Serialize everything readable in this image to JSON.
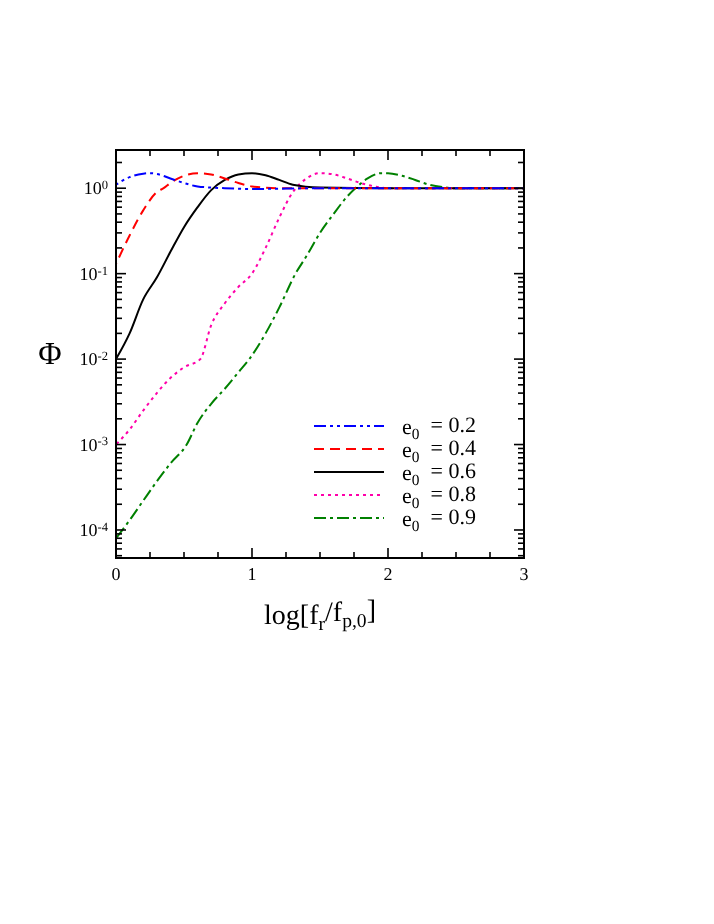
{
  "chart_data": {
    "type": "line",
    "xlabel": "log[f$_{r}$/f$_{p,0}$]",
    "ylabel": "Φ",
    "log": "y",
    "xlim": [
      0,
      3
    ],
    "ylim": [
      4.7e-05,
      2.8
    ],
    "xticks": [
      0,
      {
        "value": 0.25,
        "label": null
      },
      {
        "value": 0.5,
        "label": null
      },
      {
        "value": 0.75,
        "label": null
      },
      1,
      {
        "value": 1.25,
        "label": null
      },
      {
        "value": 1.5,
        "label": null
      },
      {
        "value": 1.75,
        "label": null
      },
      2,
      {
        "value": 2.25,
        "label": null
      },
      {
        "value": 2.5,
        "label": null
      },
      {
        "value": 2.75,
        "label": null
      },
      3
    ],
    "yticks": [
      {
        "value": 0.0001,
        "label": "10$^{-4}$"
      },
      {
        "value": 0.001,
        "label": "10$^{-3}$"
      },
      {
        "value": 0.01,
        "label": "10$^{-2}$"
      },
      {
        "value": 0.1,
        "label": "10$^{-1}$"
      },
      {
        "value": 1,
        "label": "10$^{0}$"
      },
      {
        "value": 5e-05,
        "label": null
      },
      {
        "value": 6e-05,
        "label": null
      },
      {
        "value": 7e-05,
        "label": null
      },
      {
        "value": 8e-05,
        "label": null
      },
      {
        "value": 9e-05,
        "label": null
      },
      {
        "value": 0.0002,
        "label": null
      },
      {
        "value": 0.0003,
        "label": null
      },
      {
        "value": 0.0004,
        "label": null
      },
      {
        "value": 0.0005,
        "label": null
      },
      {
        "value": 0.0006,
        "label": null
      },
      {
        "value": 0.0007,
        "label": null
      },
      {
        "value": 0.0008,
        "label": null
      },
      {
        "value": 0.0009,
        "label": null
      },
      {
        "value": 0.002,
        "label": null
      },
      {
        "value": 0.003,
        "label": null
      },
      {
        "value": 0.004,
        "label": null
      },
      {
        "value": 0.005,
        "label": null
      },
      {
        "value": 0.006,
        "label": null
      },
      {
        "value": 0.007,
        "label": null
      },
      {
        "value": 0.008,
        "label": null
      },
      {
        "value": 0.009,
        "label": null
      },
      {
        "value": 0.02,
        "label": null
      },
      {
        "value": 0.03,
        "label": null
      },
      {
        "value": 0.04,
        "label": null
      },
      {
        "value": 0.05,
        "label": null
      },
      {
        "value": 0.06,
        "label": null
      },
      {
        "value": 0.07,
        "label": null
      },
      {
        "value": 0.08,
        "label": null
      },
      {
        "value": 0.09,
        "label": null
      },
      {
        "value": 0.2,
        "label": null
      },
      {
        "value": 0.3,
        "label": null
      },
      {
        "value": 0.4,
        "label": null
      },
      {
        "value": 0.5,
        "label": null
      },
      {
        "value": 0.6,
        "label": null
      },
      {
        "value": 0.7,
        "label": null
      },
      {
        "value": 0.8,
        "label": null
      },
      {
        "value": 0.9,
        "label": null
      },
      {
        "value": 2,
        "label": null
      }
    ],
    "legend": "bottom right",
    "series": [
      {
        "name": "e$_{0}$  = 0.2",
        "color": "#0000ff",
        "line_style": "dashdotdot",
        "x": [
          0,
          0.1,
          0.2,
          0.25,
          0.3,
          0.4,
          0.5,
          0.6,
          0.8,
          1,
          1.5,
          2,
          2.5,
          3
        ],
        "values": [
          1.1,
          1.35,
          1.48,
          1.5,
          1.47,
          1.3,
          1.15,
          1.05,
          1.0,
          0.98,
          1,
          1,
          1,
          1
        ]
      },
      {
        "name": "e$_{0}$  = 0.4",
        "color": "#ff0000",
        "line_style": "dashed",
        "x": [
          0,
          0.1,
          0.2,
          0.3,
          0.35,
          0.4,
          0.5,
          0.6,
          0.7,
          0.8,
          0.9,
          1,
          1.2,
          1.5,
          2,
          3
        ],
        "values": [
          0.13,
          0.28,
          0.55,
          0.9,
          1.0,
          1.15,
          1.4,
          1.5,
          1.45,
          1.3,
          1.15,
          1.05,
          1.0,
          1,
          1,
          1
        ]
      },
      {
        "name": "e$_{0}$  = 0.6",
        "color": "#000000",
        "line_style": "solid",
        "x": [
          0,
          0.1,
          0.2,
          0.3,
          0.4,
          0.5,
          0.6,
          0.7,
          0.8,
          0.9,
          1,
          1.1,
          1.2,
          1.3,
          1.5,
          2,
          3
        ],
        "values": [
          0.01,
          0.02,
          0.05,
          0.09,
          0.18,
          0.35,
          0.6,
          0.95,
          1.25,
          1.45,
          1.5,
          1.42,
          1.25,
          1.1,
          1.02,
          1,
          1
        ]
      },
      {
        "name": "e$_{0}$  = 0.8",
        "color": "#ff00aa",
        "line_style": "dotted",
        "x": [
          0,
          0.1,
          0.2,
          0.3,
          0.4,
          0.5,
          0.62,
          0.7,
          0.8,
          0.9,
          1,
          1.1,
          1.2,
          1.3,
          1.4,
          1.5,
          1.6,
          1.7,
          1.8,
          1.9,
          2,
          2.5,
          3
        ],
        "values": [
          0.001,
          0.0015,
          0.0025,
          0.004,
          0.006,
          0.008,
          0.01,
          0.025,
          0.045,
          0.07,
          0.1,
          0.2,
          0.45,
          0.9,
          1.3,
          1.5,
          1.45,
          1.3,
          1.15,
          1.05,
          1.0,
          1,
          1
        ]
      },
      {
        "name": "e$_{0}$  = 0.9",
        "color": "#008000",
        "line_style": "dashdot",
        "x": [
          0,
          0.1,
          0.2,
          0.3,
          0.4,
          0.52,
          0.6,
          0.7,
          0.8,
          0.9,
          0.98,
          1.1,
          1.2,
          1.32,
          1.4,
          1.5,
          1.6,
          1.7,
          1.76,
          1.85,
          1.95,
          2,
          2.1,
          2.2,
          2.3,
          2.4,
          2.5,
          3
        ],
        "values": [
          8e-05,
          0.00013,
          0.00022,
          0.00037,
          0.0006,
          0.001,
          0.0018,
          0.003,
          0.0045,
          0.007,
          0.01,
          0.02,
          0.04,
          0.1,
          0.16,
          0.3,
          0.5,
          0.8,
          1.0,
          1.3,
          1.5,
          1.5,
          1.4,
          1.25,
          1.1,
          1.03,
          1.0,
          1
        ]
      }
    ]
  }
}
